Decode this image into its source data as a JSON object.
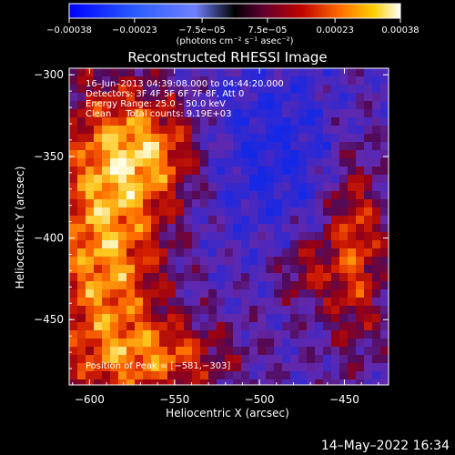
{
  "chart_data": {
    "type": "heatmap",
    "title": "Reconstructed RHESSI Image",
    "xlabel": "Heliocentric X (arcsec)",
    "ylabel": "Heliocentric Y (arcsec)",
    "xlim": [
      -612,
      -424
    ],
    "ylim": [
      -490,
      -296
    ],
    "x_ticks": [
      -600,
      -550,
      -500,
      -450
    ],
    "x_tick_labels": [
      "−600",
      "−550",
      "−500",
      "−450"
    ],
    "y_ticks": [
      -300,
      -350,
      -400,
      -450
    ],
    "y_tick_labels": [
      "−300",
      "−350",
      "−400",
      "−450"
    ],
    "colorbar": {
      "range": [
        -0.00038,
        0.00038
      ],
      "ticks": [
        -0.00038,
        -0.00023,
        -7.5e-05,
        7.5e-05,
        0.00023,
        0.00038
      ],
      "tick_labels": [
        "−0.00038",
        "−0.00023",
        "−7.5e−05",
        "7.5e−05",
        "0.00023",
        "0.00038"
      ],
      "units": "(photons cm⁻² s⁻¹ asec⁻²)"
    },
    "annotations": [
      "16–Jun–2013 04:39:08.000 to 04:44:20.000",
      "Detectors: 3F 4F 5F 6F 7F 8F, Att 0",
      "Energy Range: 25.0 – 50.0 keV",
      "Clean     Total counts: 9.19E+03"
    ],
    "peak_label": "Position of Peak = [−581,−303]",
    "peak": [
      -581,
      -303
    ]
  },
  "footer": {
    "timestamp": "14–May–2022 16:34"
  }
}
